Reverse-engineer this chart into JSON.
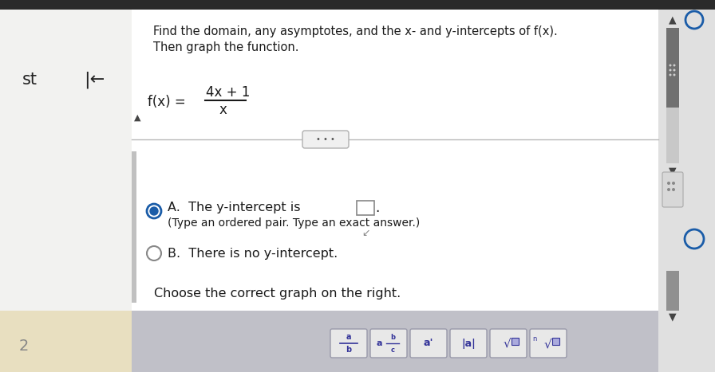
{
  "bg_outer": "#1a1a1a",
  "bg_left": "#f5f5f5",
  "bg_main": "#f8f8f8",
  "bg_bottom_left": "#e8e0c8",
  "panel_white": "#ffffff",
  "panel_light": "#f0f0f0",
  "title_line1": "Find the domain, any asymptotes, and the x- and y-intercepts of f(x).",
  "title_line2": "Then graph the function.",
  "numerator": "4x + 1",
  "denominator": "x",
  "option_a_main": "A.  The y-intercept is",
  "option_a_sub": "(Type an ordered pair. Type an exact answer.)",
  "option_b_text": "B.  There is no y-intercept.",
  "choose_text": "Choose the correct graph on the right.",
  "text_color": "#1a1a1a",
  "radio_blue": "#1a5ca8",
  "gray_mid": "#888888",
  "gray_light": "#c8c8c8",
  "divider_color": "#b8b8b8",
  "scrollbar_dark": "#5a5a5a",
  "scrollbar_light": "#d0d0d0",
  "right_panel_bg": "#e8e8e8",
  "btn_bg": "#f0f0f0",
  "btn_border": "#aaaaaa",
  "btn_text": "#333399",
  "bottom_bar_bg": "#c0c0c8"
}
